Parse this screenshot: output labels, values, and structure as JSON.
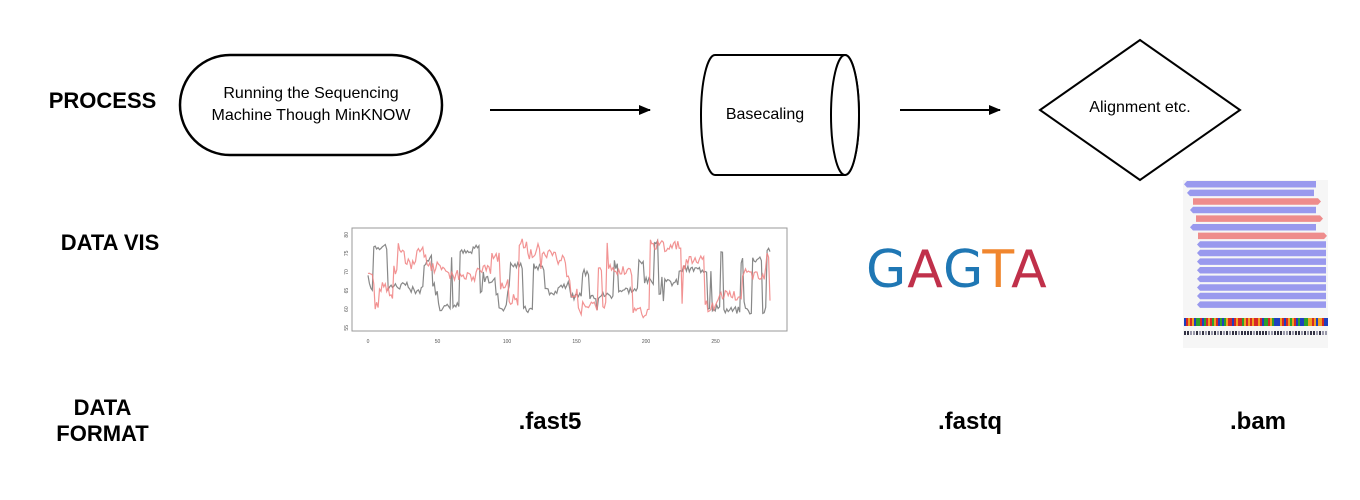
{
  "rows": {
    "process": "PROCESS",
    "data_vis": "DATA VIS",
    "data_format": "DATA\nFORMAT"
  },
  "nodes": {
    "sequencing": "Running the Sequencing\nMachine Though MinKNOW",
    "basecalling": "Basecaling",
    "alignment": "Alignment etc."
  },
  "formats": {
    "fast5": ".fast5",
    "fastq": ".fastq",
    "bam": ".bam"
  },
  "fastq_sequence": [
    {
      "letter": "G",
      "color": "#1f77b4"
    },
    {
      "letter": "A",
      "color": "#c0304a"
    },
    {
      "letter": "G",
      "color": "#1f77b4"
    },
    {
      "letter": "T",
      "color": "#f0862e"
    },
    {
      "letter": "A",
      "color": "#c0304a"
    }
  ],
  "signal_plot": {
    "x_ticks": [
      "0",
      "50",
      "100",
      "150",
      "200",
      "250"
    ],
    "y_ticks": [
      "55",
      "60",
      "65",
      "70",
      "75",
      "80"
    ],
    "series": [
      {
        "color": "#888888"
      },
      {
        "color": "#f08080"
      }
    ]
  },
  "colors": {
    "read_forward": "#9999ee",
    "read_reverse": "#ee8c8c"
  }
}
